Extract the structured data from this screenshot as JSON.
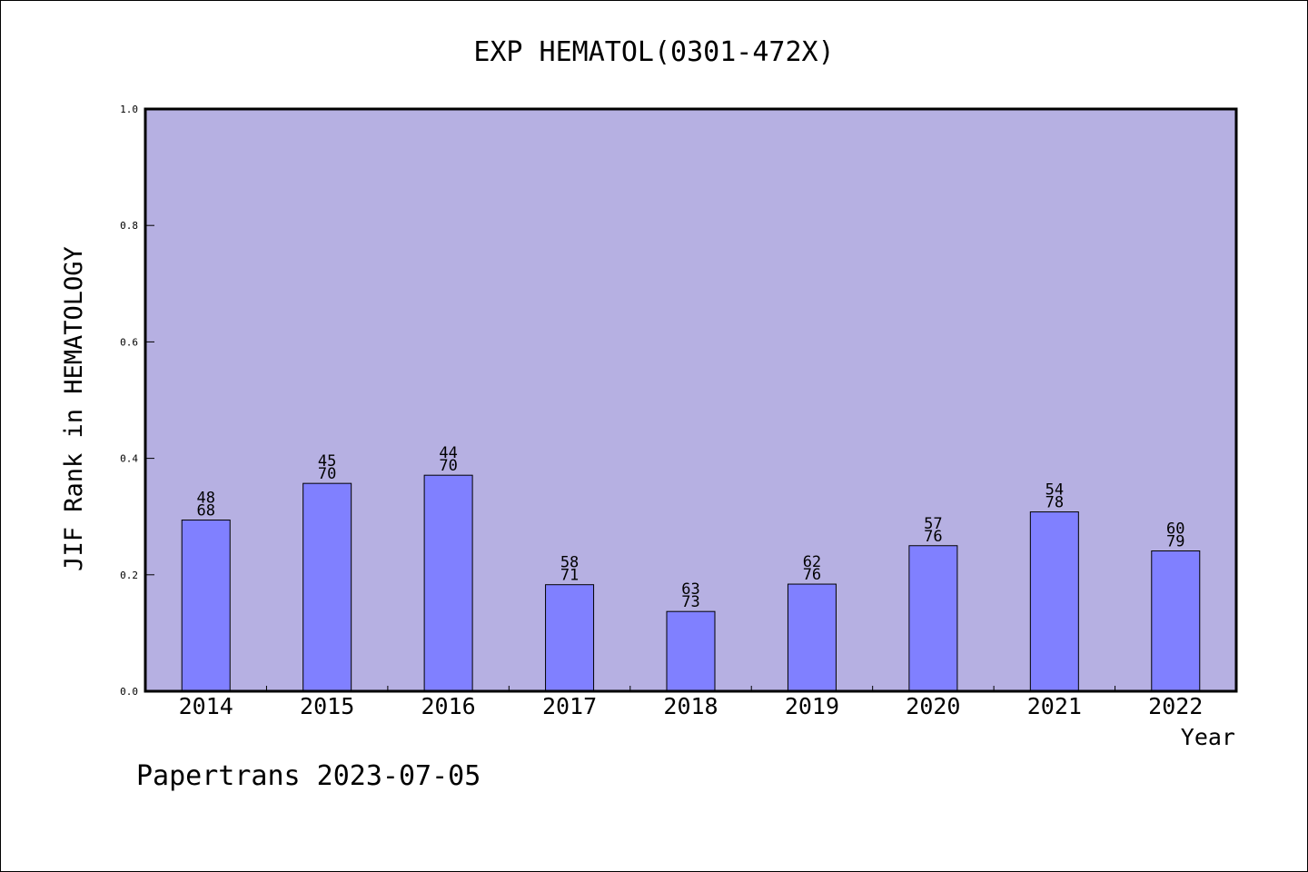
{
  "chart_data": {
    "type": "bar",
    "title": "EXP HEMATOL(0301-472X)",
    "xlabel": "Year",
    "ylabel": "JIF Rank in HEMATOLOGY",
    "ylim": [
      0,
      1
    ],
    "yticks": [
      "0.0",
      "0.2",
      "0.4",
      "0.6",
      "0.8",
      "1.0"
    ],
    "ytick_values": [
      0,
      0.2,
      0.4,
      0.6,
      0.8,
      1.0
    ],
    "categories": [
      "2014",
      "2015",
      "2016",
      "2017",
      "2018",
      "2019",
      "2020",
      "2021",
      "2022"
    ],
    "values": [
      0.294,
      0.357,
      0.371,
      0.183,
      0.137,
      0.184,
      0.25,
      0.308,
      0.241
    ],
    "rank_labels": [
      "48",
      "45",
      "44",
      "58",
      "63",
      "62",
      "57",
      "54",
      "60"
    ],
    "total_labels": [
      "68",
      "70",
      "70",
      "71",
      "73",
      "76",
      "76",
      "78",
      "79"
    ],
    "grid": false,
    "legend": "none"
  },
  "footer": {
    "source": "Papertrans 2023-07-05"
  },
  "colors": {
    "plot_background": "#b6b0e2",
    "bar_fill": "#8080ff",
    "axis": "#000000",
    "text": "#000000"
  }
}
